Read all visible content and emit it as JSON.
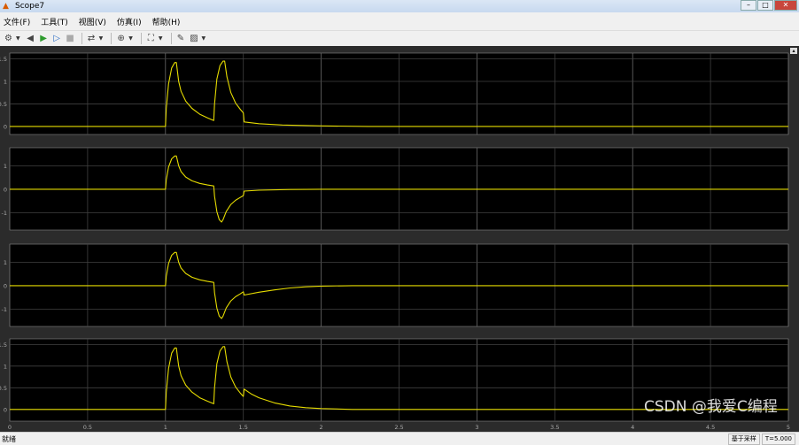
{
  "window": {
    "title": "Scope7",
    "icon": "matlab-icon",
    "controls": [
      "minimize-icon",
      "maximize-icon",
      "close-icon"
    ]
  },
  "menu": [
    {
      "label": "文件(F)"
    },
    {
      "label": "工具(T)"
    },
    {
      "label": "视图(V)"
    },
    {
      "label": "仿真(I)"
    },
    {
      "label": "帮助(H)"
    }
  ],
  "toolbar": [
    {
      "icon": "gear-icon",
      "glyph": "⚙",
      "dropdown": true
    },
    {
      "icon": "step-back-icon",
      "glyph": "◀",
      "sep": false
    },
    {
      "icon": "run-icon",
      "glyph": "▶",
      "color": "#2e9b2e"
    },
    {
      "icon": "step-forward-icon",
      "glyph": "▷",
      "color": "#2b6cc4"
    },
    {
      "icon": "stop-icon",
      "glyph": "■",
      "color": "#aaa",
      "dropdown": false,
      "sep": true
    },
    {
      "icon": "highlight-block-icon",
      "glyph": "⇄",
      "dropdown": true,
      "sep": true
    },
    {
      "icon": "zoom-icon",
      "glyph": "⊕",
      "dropdown": true,
      "sep": true
    },
    {
      "icon": "autoscale-icon",
      "glyph": "⛶",
      "dropdown": true,
      "sep": true
    },
    {
      "icon": "style-icon",
      "glyph": "✎"
    },
    {
      "icon": "cursor-measure-icon",
      "glyph": "▨",
      "dropdown": true
    }
  ],
  "status": {
    "left": "就绪",
    "mode": "基于采样",
    "time": "T=5.000"
  },
  "watermark": "CSDN @我爱C编程",
  "colors": {
    "line": "#e6dc00",
    "background": "#000000",
    "grid": "#404040",
    "frame": "#2b2b2b"
  },
  "chart_data": [
    {
      "type": "line",
      "xlim": [
        0,
        5
      ],
      "ylim": [
        -0.18,
        1.63
      ],
      "yticks": [
        "1.5",
        "1",
        "0.5",
        "0"
      ],
      "ytick_values": [
        1.5,
        1,
        0.5,
        0
      ],
      "grid": true,
      "points": [
        [
          0,
          0
        ],
        [
          1,
          0
        ],
        [
          1.005,
          0.4
        ],
        [
          1.02,
          0.95
        ],
        [
          1.04,
          1.3
        ],
        [
          1.06,
          1.42
        ],
        [
          1.07,
          1.42
        ],
        [
          1.085,
          1.0
        ],
        [
          1.1,
          0.78
        ],
        [
          1.13,
          0.56
        ],
        [
          1.17,
          0.4
        ],
        [
          1.22,
          0.27
        ],
        [
          1.27,
          0.19
        ],
        [
          1.31,
          0.13
        ],
        [
          1.315,
          0.5
        ],
        [
          1.33,
          1.05
        ],
        [
          1.35,
          1.35
        ],
        [
          1.37,
          1.45
        ],
        [
          1.38,
          1.45
        ],
        [
          1.395,
          1.1
        ],
        [
          1.42,
          0.75
        ],
        [
          1.45,
          0.52
        ],
        [
          1.48,
          0.38
        ],
        [
          1.5,
          0.3
        ],
        [
          1.505,
          0.1
        ],
        [
          1.6,
          0.06
        ],
        [
          1.75,
          0.03
        ],
        [
          2,
          0.01
        ],
        [
          2.3,
          0
        ],
        [
          5,
          0
        ]
      ]
    },
    {
      "type": "line",
      "xlim": [
        0,
        5
      ],
      "ylim": [
        -1.74,
        1.77
      ],
      "yticks": [
        "1",
        "0",
        "-1"
      ],
      "ytick_values": [
        1,
        0,
        -1
      ],
      "grid": true,
      "points": [
        [
          0,
          0
        ],
        [
          1,
          0
        ],
        [
          1.005,
          0.4
        ],
        [
          1.02,
          0.95
        ],
        [
          1.04,
          1.3
        ],
        [
          1.06,
          1.42
        ],
        [
          1.07,
          1.42
        ],
        [
          1.085,
          1.0
        ],
        [
          1.1,
          0.75
        ],
        [
          1.13,
          0.52
        ],
        [
          1.17,
          0.36
        ],
        [
          1.22,
          0.25
        ],
        [
          1.27,
          0.18
        ],
        [
          1.31,
          0.14
        ],
        [
          1.315,
          -0.3
        ],
        [
          1.33,
          -0.95
        ],
        [
          1.345,
          -1.3
        ],
        [
          1.36,
          -1.4
        ],
        [
          1.37,
          -1.3
        ],
        [
          1.39,
          -0.95
        ],
        [
          1.42,
          -0.65
        ],
        [
          1.45,
          -0.47
        ],
        [
          1.48,
          -0.35
        ],
        [
          1.5,
          -0.27
        ],
        [
          1.505,
          -0.08
        ],
        [
          1.6,
          -0.04
        ],
        [
          1.8,
          -0.01
        ],
        [
          2,
          0
        ],
        [
          5,
          0
        ]
      ]
    },
    {
      "type": "line",
      "xlim": [
        0,
        5
      ],
      "ylim": [
        -1.74,
        1.77
      ],
      "yticks": [
        "1",
        "0",
        "-1"
      ],
      "ytick_values": [
        1,
        0,
        -1
      ],
      "grid": true,
      "points": [
        [
          0,
          0
        ],
        [
          1,
          0
        ],
        [
          1.005,
          0.4
        ],
        [
          1.02,
          0.95
        ],
        [
          1.04,
          1.3
        ],
        [
          1.06,
          1.42
        ],
        [
          1.07,
          1.42
        ],
        [
          1.085,
          1.0
        ],
        [
          1.1,
          0.75
        ],
        [
          1.13,
          0.52
        ],
        [
          1.17,
          0.36
        ],
        [
          1.22,
          0.25
        ],
        [
          1.27,
          0.18
        ],
        [
          1.31,
          0.14
        ],
        [
          1.315,
          -0.3
        ],
        [
          1.33,
          -0.95
        ],
        [
          1.345,
          -1.3
        ],
        [
          1.36,
          -1.4
        ],
        [
          1.37,
          -1.3
        ],
        [
          1.39,
          -0.95
        ],
        [
          1.42,
          -0.65
        ],
        [
          1.45,
          -0.47
        ],
        [
          1.48,
          -0.35
        ],
        [
          1.5,
          -0.26
        ],
        [
          1.505,
          -0.4
        ],
        [
          1.6,
          -0.28
        ],
        [
          1.7,
          -0.18
        ],
        [
          1.8,
          -0.1
        ],
        [
          1.9,
          -0.05
        ],
        [
          2,
          -0.02
        ],
        [
          2.2,
          0
        ],
        [
          5,
          0
        ]
      ]
    },
    {
      "type": "line",
      "xlim": [
        0,
        5
      ],
      "ylim": [
        -0.27,
        1.63
      ],
      "yticks": [
        "1.5",
        "1",
        "0.5",
        "0"
      ],
      "ytick_values": [
        1.5,
        1,
        0.5,
        0
      ],
      "grid": true,
      "xticks": [
        "0",
        "0.5",
        "1",
        "1.5",
        "2",
        "2.5",
        "3",
        "3.5",
        "4",
        "4.5",
        "5"
      ],
      "points": [
        [
          0,
          0
        ],
        [
          1,
          0
        ],
        [
          1.005,
          0.4
        ],
        [
          1.02,
          0.95
        ],
        [
          1.04,
          1.3
        ],
        [
          1.06,
          1.42
        ],
        [
          1.07,
          1.42
        ],
        [
          1.085,
          1.0
        ],
        [
          1.1,
          0.78
        ],
        [
          1.13,
          0.56
        ],
        [
          1.17,
          0.4
        ],
        [
          1.22,
          0.27
        ],
        [
          1.27,
          0.19
        ],
        [
          1.31,
          0.13
        ],
        [
          1.315,
          0.5
        ],
        [
          1.33,
          1.05
        ],
        [
          1.35,
          1.35
        ],
        [
          1.37,
          1.45
        ],
        [
          1.38,
          1.45
        ],
        [
          1.395,
          1.1
        ],
        [
          1.42,
          0.75
        ],
        [
          1.45,
          0.52
        ],
        [
          1.48,
          0.38
        ],
        [
          1.5,
          0.3
        ],
        [
          1.505,
          0.47
        ],
        [
          1.55,
          0.36
        ],
        [
          1.6,
          0.27
        ],
        [
          1.7,
          0.15
        ],
        [
          1.8,
          0.08
        ],
        [
          1.9,
          0.04
        ],
        [
          2,
          0.02
        ],
        [
          2.2,
          0
        ],
        [
          5,
          0
        ]
      ]
    }
  ]
}
